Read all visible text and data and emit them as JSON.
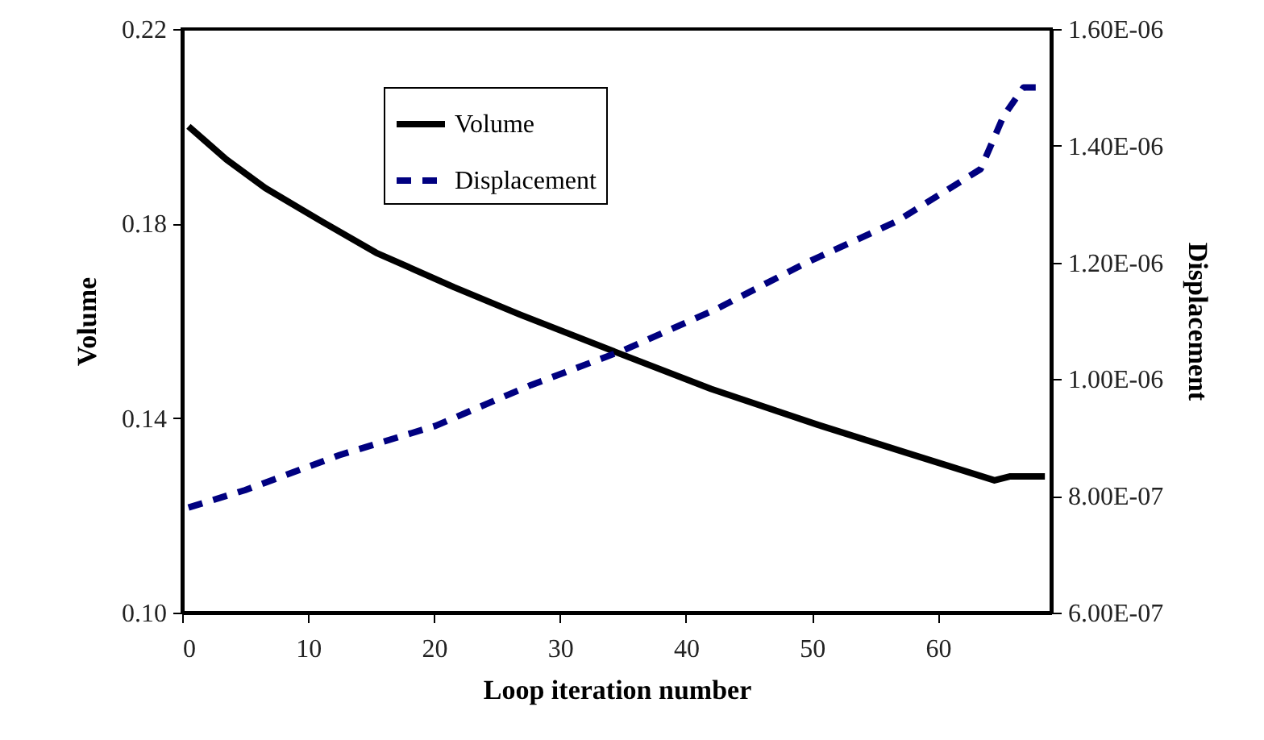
{
  "chart_data": {
    "type": "line",
    "xlabel": "Loop iteration number",
    "ylabel": "Volume",
    "y2label": "Displacement",
    "xlim": [
      0,
      69
    ],
    "xticks": [
      0,
      10,
      20,
      30,
      40,
      50,
      60
    ],
    "ylim": [
      0.1,
      0.22
    ],
    "yticks": [
      {
        "value": 0.1,
        "label": "0.10"
      },
      {
        "value": 0.14,
        "label": "0.14"
      },
      {
        "value": 0.18,
        "label": "0.18"
      },
      {
        "value": 0.22,
        "label": "0.22"
      }
    ],
    "y2lim": [
      6e-07,
      1.6e-06
    ],
    "y2ticks": [
      {
        "value": 6e-07,
        "label": "6.00E-07"
      },
      {
        "value": 8e-07,
        "label": "8.00E-07"
      },
      {
        "value": 1e-06,
        "label": "1.00E-06"
      },
      {
        "value": 1.2e-06,
        "label": "1.20E-06"
      },
      {
        "value": 1.4e-06,
        "label": "1.40E-06"
      },
      {
        "value": 1.6e-06,
        "label": "1.60E-06"
      }
    ],
    "grid": false,
    "legend": "top",
    "marker": "none",
    "series": [
      {
        "name": "Volume",
        "color": "#000000",
        "line_style": "solid",
        "x": [
          0.5,
          3.5,
          6.6,
          11.1,
          15.4,
          21.6,
          26.8,
          34.4,
          42,
          50.5,
          57.6,
          64.5,
          65.7,
          68.5
        ],
        "values": [
          0.2,
          0.1932,
          0.1873,
          0.1804,
          0.174,
          0.1669,
          0.1613,
          0.1536,
          0.146,
          0.1386,
          0.1328,
          0.1272,
          0.128,
          0.128
        ]
      },
      {
        "name": "Displacement",
        "color": "#000080",
        "line_style": "dashed",
        "axis": "y2",
        "x": [
          0.5,
          5,
          12.5,
          20.1,
          27.7,
          35.1,
          42.4,
          49.6,
          56.7,
          63.4,
          65.2,
          66.8,
          67.8
        ],
        "values": [
          7.8e-07,
          8.1e-07,
          8.7e-07,
          9.2e-07,
          9.9e-07,
          1.05e-06,
          1.12e-06,
          1.2e-06,
          1.27e-06,
          1.36e-06,
          1.45e-06,
          1.5e-06,
          1.5e-06
        ]
      }
    ]
  }
}
